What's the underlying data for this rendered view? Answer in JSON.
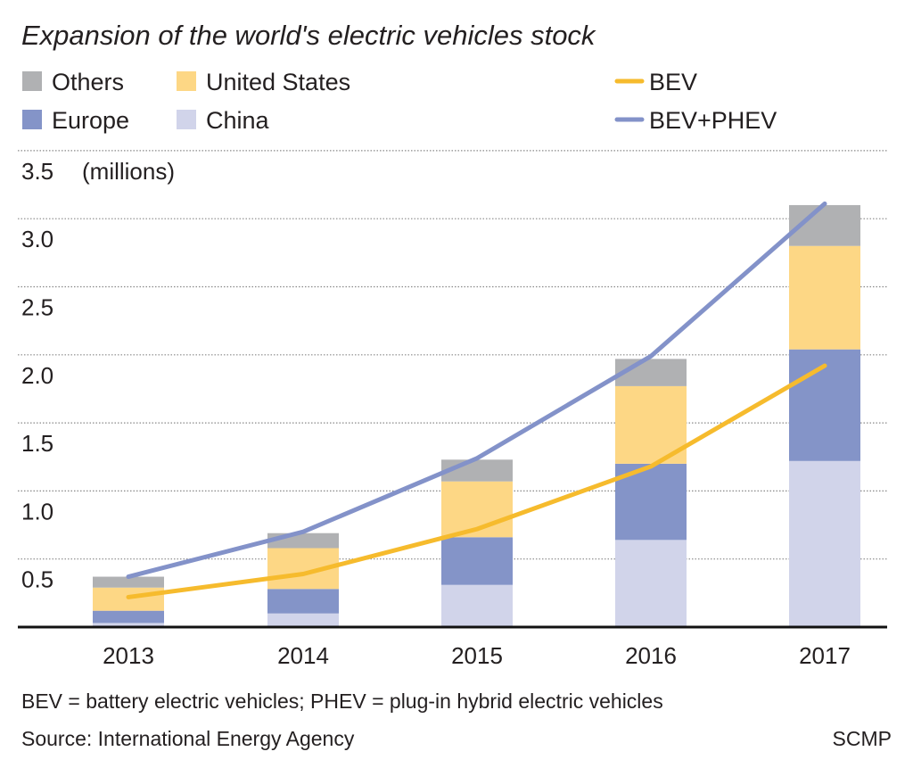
{
  "chart_data": {
    "type": "bar",
    "stacked": true,
    "title": "Expansion of the world's electric vehicles stock",
    "ylabel": "(millions)",
    "xlabel": "",
    "categories": [
      "2013",
      "2014",
      "2015",
      "2016",
      "2017"
    ],
    "ylim": [
      0,
      3.5
    ],
    "yticks": [
      "0.5",
      "1.0",
      "1.5",
      "2.0",
      "2.5",
      "3.0",
      "3.5"
    ],
    "grid": true,
    "legend_position": "top",
    "series": [
      {
        "name": "China",
        "color": "#d1d4ea",
        "values": [
          0.03,
          0.1,
          0.31,
          0.64,
          1.22
        ]
      },
      {
        "name": "Europe",
        "color": "#8494c8",
        "values": [
          0.09,
          0.18,
          0.35,
          0.56,
          0.82
        ]
      },
      {
        "name": "United States",
        "color": "#fdd785",
        "values": [
          0.17,
          0.3,
          0.41,
          0.57,
          0.76
        ]
      },
      {
        "name": "Others",
        "color": "#b0b1b3",
        "values": [
          0.08,
          0.11,
          0.16,
          0.2,
          0.3
        ]
      }
    ],
    "lines": [
      {
        "name": "BEV",
        "color": "#f6bb2d",
        "values": [
          0.22,
          0.39,
          0.72,
          1.18,
          1.92
        ]
      },
      {
        "name": "BEV+PHEV",
        "color": "#8392c9",
        "values": [
          0.37,
          0.7,
          1.24,
          1.99,
          3.11
        ]
      }
    ],
    "footnote": "BEV = battery electric vehicles; PHEV = plug-in hybrid electric vehicles",
    "source": "Source: International Energy Agency",
    "credit": "SCMP"
  }
}
